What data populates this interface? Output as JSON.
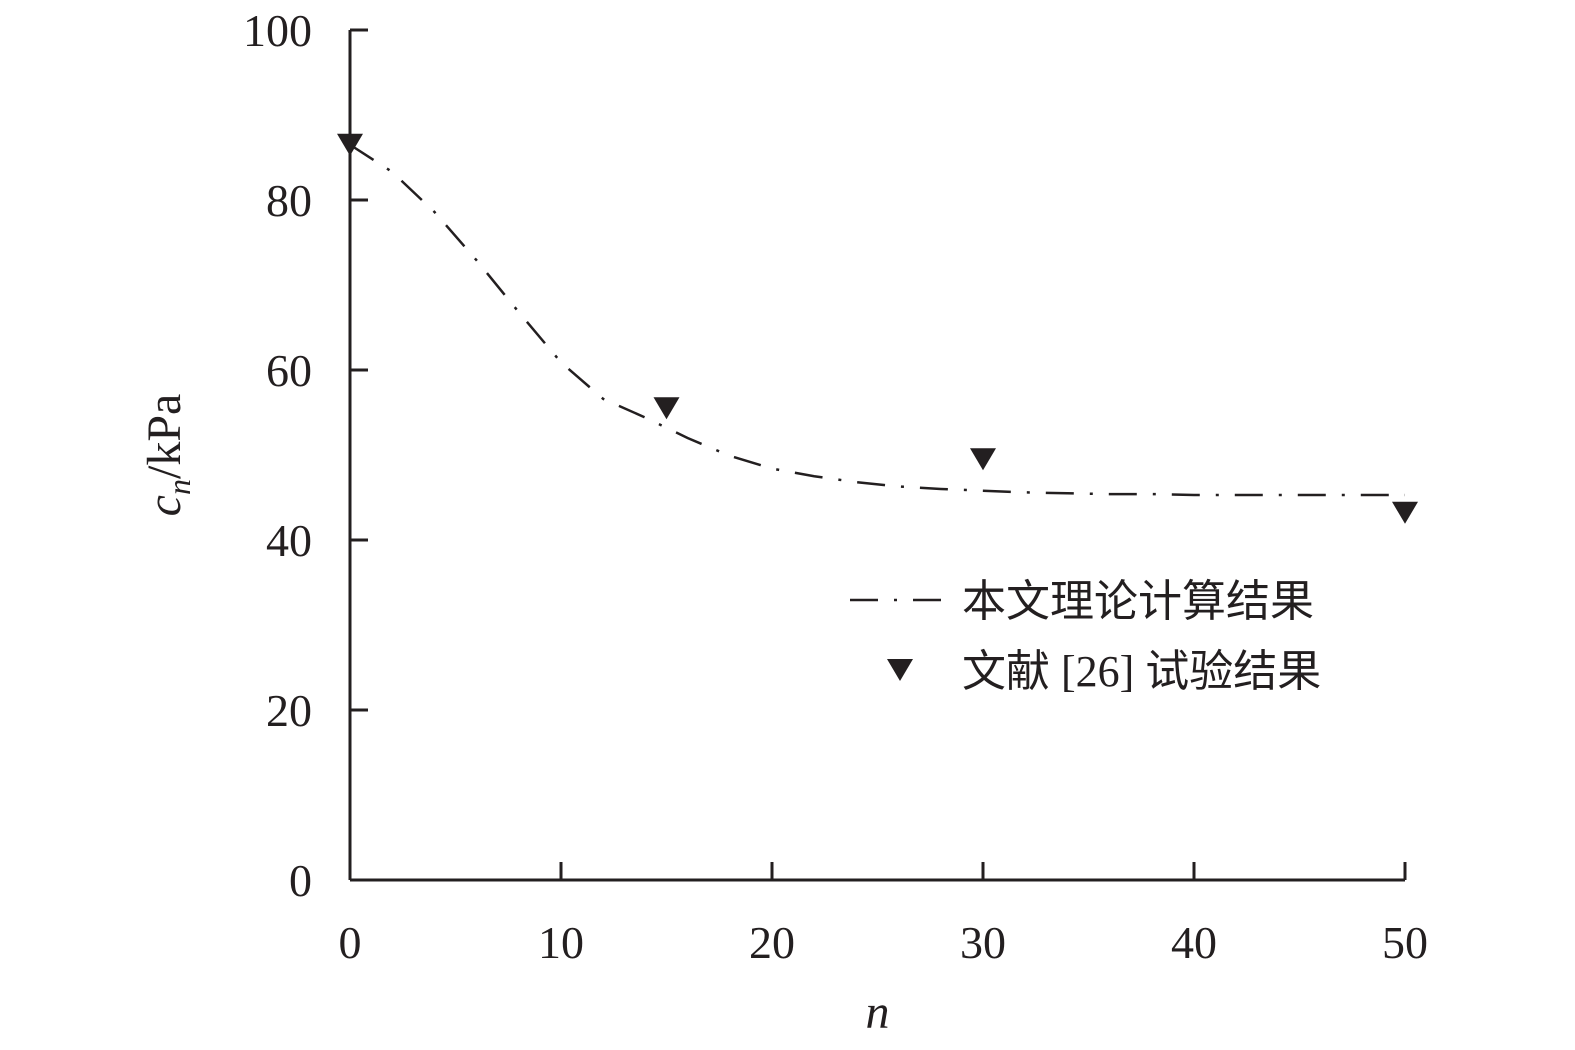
{
  "chart_data": {
    "type": "line",
    "xlabel": "n",
    "ylabel": {
      "base": "c",
      "subscript": "n",
      "suffix": "/kPa"
    },
    "xlim": [
      0,
      50
    ],
    "ylim": [
      0,
      100
    ],
    "x_ticks": [
      0,
      10,
      20,
      30,
      40,
      50
    ],
    "x_tick_labels": [
      "0",
      "10",
      "20",
      "30",
      "40",
      "50"
    ],
    "y_ticks": [
      0,
      20,
      40,
      60,
      80,
      100
    ],
    "y_tick_labels": [
      "0",
      "20",
      "40",
      "60",
      "80",
      "100"
    ],
    "grid": false,
    "legend_position": "right",
    "series": [
      {
        "name": "本文理论计算结果",
        "type": "line",
        "style": "dash-dot",
        "color": "#231f20",
        "x": [
          0,
          2,
          4,
          6,
          8,
          10,
          12,
          14,
          15,
          16,
          18,
          20,
          22,
          24,
          26,
          28,
          30,
          32,
          34,
          36,
          38,
          40,
          42,
          44,
          46,
          48,
          50
        ],
        "y": [
          86.5,
          83.3,
          78.6,
          72.9,
          66.8,
          60.9,
          56.6,
          54.4,
          53.2,
          52.0,
          49.9,
          48.4,
          47.5,
          46.8,
          46.3,
          46.0,
          45.8,
          45.6,
          45.5,
          45.4,
          45.4,
          45.3,
          45.3,
          45.3,
          45.3,
          45.3,
          45.3
        ]
      },
      {
        "name": "文献 [26] 试验结果",
        "type": "scatter",
        "marker": "triangle-down",
        "color": "#231f20",
        "x": [
          0,
          15,
          30,
          50
        ],
        "y": [
          86.5,
          55.5,
          49.5,
          43.2
        ]
      }
    ]
  }
}
